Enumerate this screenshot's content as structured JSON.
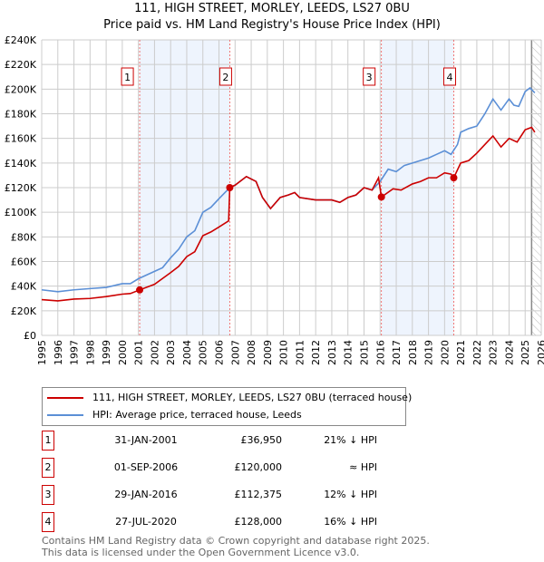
{
  "chart_data": {
    "type": "line",
    "title": "111, HIGH STREET, MORLEY, LEEDS, LS27 0BU",
    "subtitle": "Price paid vs. HM Land Registry's House Price Index (HPI)",
    "xlim": [
      1995,
      2026
    ],
    "ylim": [
      0,
      240000
    ],
    "x_ticks": [
      "1995",
      "1996",
      "1997",
      "1998",
      "1999",
      "2000",
      "2001",
      "2002",
      "2003",
      "2004",
      "2005",
      "2006",
      "2007",
      "2008",
      "2009",
      "2010",
      "2011",
      "2012",
      "2013",
      "2014",
      "2015",
      "2016",
      "2017",
      "2018",
      "2019",
      "2020",
      "2021",
      "2022",
      "2023",
      "2024",
      "2025",
      "2026"
    ],
    "y_ticks": [
      "£0",
      "£20K",
      "£40K",
      "£60K",
      "£80K",
      "£100K",
      "£120K",
      "£140K",
      "£160K",
      "£180K",
      "£200K",
      "£220K",
      "£240K"
    ],
    "grid": true,
    "series": [
      {
        "name": "111, HIGH STREET, MORLEY, LEEDS, LS27 0BU (terraced house)",
        "color": "#cc0000",
        "points": [
          [
            1995,
            29
          ],
          [
            1996,
            28
          ],
          [
            1997,
            29.5
          ],
          [
            1998,
            30
          ],
          [
            1999,
            31.5
          ],
          [
            2000,
            33.5
          ],
          [
            2000.5,
            34
          ],
          [
            2001.08,
            36.95
          ],
          [
            2002,
            41.5
          ],
          [
            2003,
            51
          ],
          [
            2003.5,
            56
          ],
          [
            2004,
            64
          ],
          [
            2004.5,
            68
          ],
          [
            2005,
            81
          ],
          [
            2005.5,
            84
          ],
          [
            2006,
            88
          ],
          [
            2006.6,
            93
          ],
          [
            2006.67,
            120
          ],
          [
            2007,
            122
          ],
          [
            2007.7,
            129
          ],
          [
            2008.3,
            125
          ],
          [
            2008.7,
            112
          ],
          [
            2009.2,
            103
          ],
          [
            2009.8,
            112
          ],
          [
            2010.3,
            114
          ],
          [
            2010.7,
            116
          ],
          [
            2011,
            112
          ],
          [
            2012,
            110
          ],
          [
            2013,
            110
          ],
          [
            2013.5,
            108
          ],
          [
            2014,
            112
          ],
          [
            2014.5,
            114
          ],
          [
            2015,
            120
          ],
          [
            2015.5,
            118
          ],
          [
            2015.9,
            128
          ],
          [
            2016.08,
            112.375
          ],
          [
            2016.8,
            119
          ],
          [
            2017.3,
            118
          ],
          [
            2018,
            123
          ],
          [
            2018.5,
            125
          ],
          [
            2019,
            128
          ],
          [
            2019.5,
            128
          ],
          [
            2020,
            132
          ],
          [
            2020.4,
            131
          ],
          [
            2020.57,
            128
          ],
          [
            2021,
            140
          ],
          [
            2021.5,
            142
          ],
          [
            2022,
            148
          ],
          [
            2022.5,
            155
          ],
          [
            2023,
            162
          ],
          [
            2023.5,
            153
          ],
          [
            2024,
            160
          ],
          [
            2024.5,
            157
          ],
          [
            2025,
            167
          ],
          [
            2025.4,
            169
          ],
          [
            2025.6,
            165
          ]
        ]
      },
      {
        "name": "HPI: Average price, terraced house, Leeds",
        "color": "#5b8fd6",
        "points": [
          [
            1995,
            37
          ],
          [
            1996,
            35.5
          ],
          [
            1997,
            37
          ],
          [
            1998,
            38
          ],
          [
            1999,
            39
          ],
          [
            2000,
            42
          ],
          [
            2000.5,
            42
          ],
          [
            2001,
            46
          ],
          [
            2002,
            52
          ],
          [
            2002.5,
            55
          ],
          [
            2003,
            63
          ],
          [
            2003.5,
            70
          ],
          [
            2004,
            80
          ],
          [
            2004.5,
            85
          ],
          [
            2005,
            100
          ],
          [
            2005.5,
            104
          ],
          [
            2006,
            111
          ],
          [
            2006.67,
            120
          ],
          [
            2007,
            122
          ],
          [
            2007.7,
            129
          ],
          [
            2008.3,
            125
          ],
          [
            2008.7,
            112
          ],
          [
            2009.2,
            103
          ],
          [
            2009.8,
            112
          ],
          [
            2010.3,
            114
          ],
          [
            2010.7,
            116
          ],
          [
            2011,
            112
          ],
          [
            2012,
            110
          ],
          [
            2013,
            110
          ],
          [
            2013.5,
            108
          ],
          [
            2014,
            112
          ],
          [
            2014.5,
            114
          ],
          [
            2015,
            120
          ],
          [
            2015.5,
            118
          ],
          [
            2016,
            125
          ],
          [
            2016.5,
            135
          ],
          [
            2017,
            133
          ],
          [
            2017.5,
            138
          ],
          [
            2018,
            140
          ],
          [
            2018.5,
            142
          ],
          [
            2019,
            144
          ],
          [
            2019.5,
            147
          ],
          [
            2020,
            150
          ],
          [
            2020.4,
            147
          ],
          [
            2020.8,
            155
          ],
          [
            2021,
            165
          ],
          [
            2021.5,
            168
          ],
          [
            2022,
            170
          ],
          [
            2022.5,
            180
          ],
          [
            2023,
            192
          ],
          [
            2023.5,
            183
          ],
          [
            2024,
            192
          ],
          [
            2024.3,
            187
          ],
          [
            2024.6,
            186
          ],
          [
            2025,
            198
          ],
          [
            2025.3,
            201
          ],
          [
            2025.6,
            197
          ]
        ]
      }
    ],
    "value_unit": "£ thousands",
    "sales": [
      {
        "id": "1",
        "x": 2001.08,
        "date": "31-JAN-2001",
        "price": "£36,950",
        "value": 36.95,
        "hpi": "21% ↓ HPI"
      },
      {
        "id": "2",
        "x": 2006.67,
        "date": "01-SEP-2006",
        "price": "£120,000",
        "value": 120,
        "hpi": "≈ HPI"
      },
      {
        "id": "3",
        "x": 2016.08,
        "date": "29-JAN-2016",
        "price": "£112,375",
        "value": 112.375,
        "hpi": "12% ↓ HPI"
      },
      {
        "id": "4",
        "x": 2020.57,
        "date": "27-JUL-2020",
        "price": "£128,000",
        "value": 128,
        "hpi": "16% ↓ HPI"
      }
    ],
    "shaded_ranges": [
      [
        2001.08,
        2006.67
      ],
      [
        2016.08,
        2020.57
      ]
    ],
    "forecast_hatch_from": 2025.4
  },
  "footer": {
    "line1": "Contains HM Land Registry data © Crown copyright and database right 2025.",
    "line2": "This data is licensed under the Open Government Licence v3.0."
  }
}
